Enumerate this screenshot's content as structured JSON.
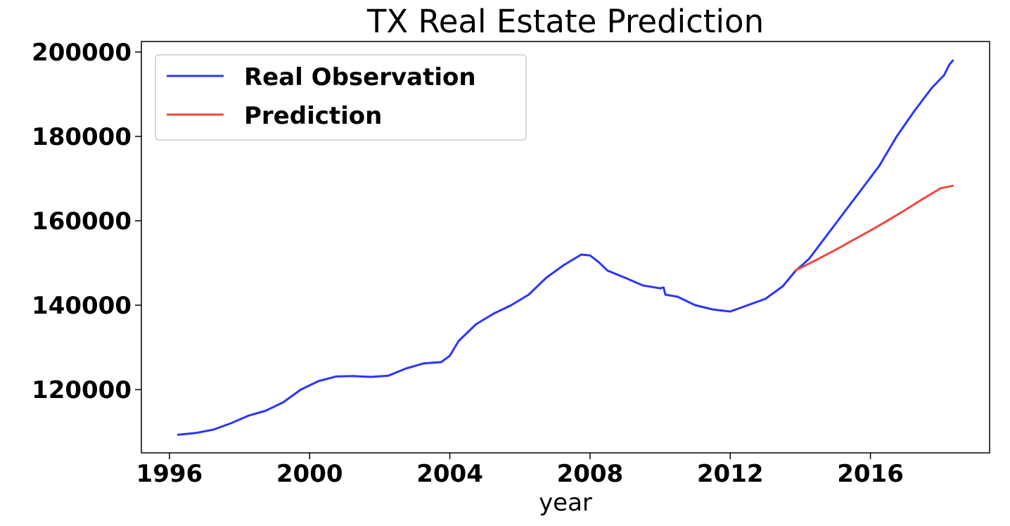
{
  "chart_data": {
    "type": "line",
    "title": "TX Real Estate Prediction",
    "xlabel": "year",
    "ylabel": "",
    "xlim": [
      1995.2,
      2019.4
    ],
    "ylim": [
      105000,
      202500
    ],
    "xticks": [
      1996,
      2000,
      2004,
      2008,
      2012,
      2016
    ],
    "yticks": [
      120000,
      140000,
      160000,
      180000,
      200000
    ],
    "grid": false,
    "legend_position": "top-left",
    "series": [
      {
        "name": "Real Observation",
        "color": "#2b35ff",
        "points": [
          [
            1996.25,
            109300
          ],
          [
            1996.75,
            109700
          ],
          [
            1997.25,
            110500
          ],
          [
            1997.75,
            112000
          ],
          [
            1998.25,
            113800
          ],
          [
            1998.75,
            115000
          ],
          [
            1999.25,
            117000
          ],
          [
            1999.75,
            120000
          ],
          [
            2000.25,
            122000
          ],
          [
            2000.75,
            123100
          ],
          [
            2001.25,
            123200
          ],
          [
            2001.75,
            123000
          ],
          [
            2002.25,
            123300
          ],
          [
            2002.75,
            125000
          ],
          [
            2003.25,
            126200
          ],
          [
            2003.75,
            126500
          ],
          [
            2004.0,
            128000
          ],
          [
            2004.25,
            131500
          ],
          [
            2004.75,
            135500
          ],
          [
            2005.25,
            138000
          ],
          [
            2005.75,
            140000
          ],
          [
            2006.25,
            142500
          ],
          [
            2006.75,
            146500
          ],
          [
            2007.25,
            149500
          ],
          [
            2007.75,
            152000
          ],
          [
            2008.0,
            151800
          ],
          [
            2008.25,
            150200
          ],
          [
            2008.5,
            148200
          ],
          [
            2009.0,
            146500
          ],
          [
            2009.5,
            144700
          ],
          [
            2010.0,
            144000
          ],
          [
            2010.1,
            144200
          ],
          [
            2010.15,
            142500
          ],
          [
            2010.5,
            142000
          ],
          [
            2011.0,
            140000
          ],
          [
            2011.5,
            139000
          ],
          [
            2012.0,
            138500
          ],
          [
            2012.5,
            140000
          ],
          [
            2013.0,
            141500
          ],
          [
            2013.5,
            144500
          ],
          [
            2013.85,
            148000
          ],
          [
            2014.25,
            151000
          ],
          [
            2014.75,
            156500
          ],
          [
            2015.25,
            162000
          ],
          [
            2015.75,
            167500
          ],
          [
            2016.25,
            173000
          ],
          [
            2016.75,
            180000
          ],
          [
            2017.25,
            186000
          ],
          [
            2017.75,
            191500
          ],
          [
            2018.1,
            194500
          ],
          [
            2018.25,
            197000
          ],
          [
            2018.35,
            198000
          ]
        ]
      },
      {
        "name": "Prediction",
        "color": "#f0473d",
        "points": [
          [
            2013.85,
            148200
          ],
          [
            2014.5,
            150900
          ],
          [
            2015.0,
            153100
          ],
          [
            2015.5,
            155400
          ],
          [
            2016.0,
            157700
          ],
          [
            2016.5,
            160100
          ],
          [
            2017.0,
            162600
          ],
          [
            2017.5,
            165200
          ],
          [
            2018.0,
            167700
          ],
          [
            2018.35,
            168300
          ]
        ]
      }
    ]
  }
}
